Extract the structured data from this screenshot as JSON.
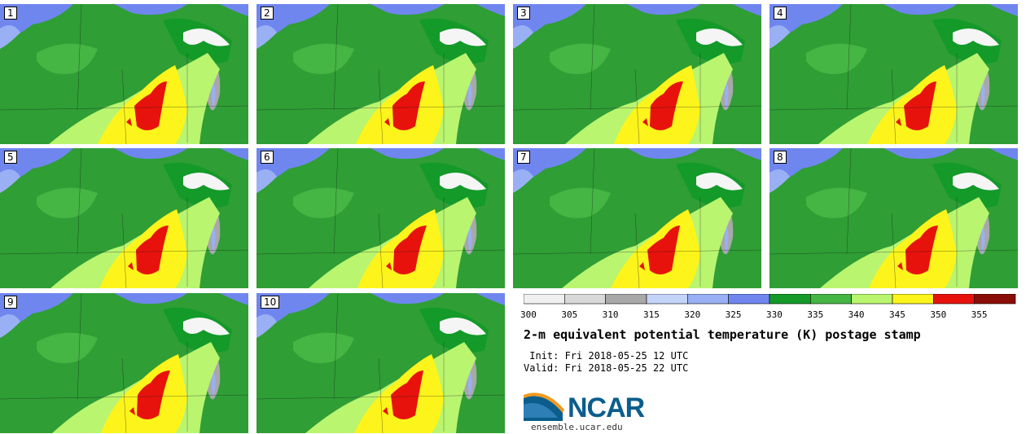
{
  "stamps": [
    {
      "label": "1"
    },
    {
      "label": "2"
    },
    {
      "label": "3"
    },
    {
      "label": "4"
    },
    {
      "label": "5"
    },
    {
      "label": "6"
    },
    {
      "label": "7"
    },
    {
      "label": "8"
    },
    {
      "label": "9"
    },
    {
      "label": "10"
    }
  ],
  "colorbar": {
    "ticks": [
      "300",
      "305",
      "310",
      "315",
      "320",
      "325",
      "330",
      "335",
      "340",
      "345",
      "350",
      "355"
    ],
    "colors": [
      "#f0f0f0",
      "#d9d9d9",
      "#a8a8a8",
      "#c4d4f8",
      "#9ab0f5",
      "#6f86ef",
      "#139a29",
      "#45b543",
      "#b9f56f",
      "#fdf41b",
      "#e8120d",
      "#8b0d07"
    ]
  },
  "title": "2-m equivalent potential temperature (K) postage stamp",
  "init": " Init: Fri 2018-05-25 12 UTC",
  "valid": "Valid: Fri 2018-05-25 22 UTC",
  "logo": {
    "text": "NCAR",
    "site": "ensemble.ucar.edu"
  }
}
